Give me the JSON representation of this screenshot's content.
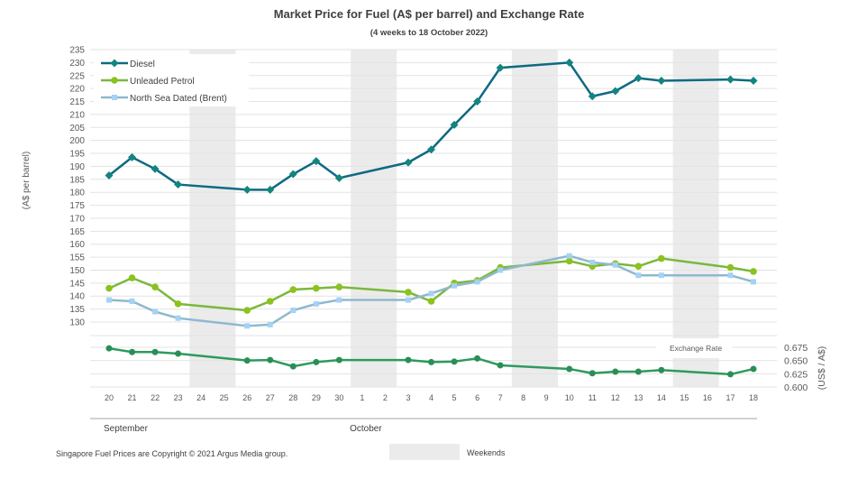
{
  "chart_data": {
    "type": "line",
    "title": "Market Price for Fuel (A$ per barrel) and Exchange Rate",
    "subtitle": "(4 weeks to 18 October 2022)",
    "ylabel": "(A$ per barrel)",
    "y2label": "(US$ / A$)",
    "ylim": [
      130,
      235
    ],
    "yticks": [
      130,
      135,
      140,
      145,
      150,
      155,
      160,
      165,
      170,
      175,
      180,
      185,
      190,
      195,
      200,
      205,
      210,
      215,
      220,
      225,
      230,
      235
    ],
    "y2lim": [
      0.6,
      0.675
    ],
    "y2ticks": [
      "0.600",
      "0.625",
      "0.650",
      "0.675"
    ],
    "x": [
      "20",
      "21",
      "22",
      "23",
      "24",
      "25",
      "26",
      "27",
      "28",
      "29",
      "30",
      "1",
      "2",
      "3",
      "4",
      "5",
      "6",
      "7",
      "8",
      "9",
      "10",
      "11",
      "12",
      "13",
      "14",
      "15",
      "16",
      "17",
      "18"
    ],
    "months": [
      {
        "label": "September",
        "from": "20",
        "to": "30"
      },
      {
        "label": "October",
        "from": "1",
        "to": "18"
      }
    ],
    "weekends": [
      [
        "24",
        "25"
      ],
      [
        "1",
        "2"
      ],
      [
        "8",
        "9"
      ],
      [
        "15",
        "16"
      ]
    ],
    "weekend_legend": "Weekends",
    "grid": true,
    "legend_placement": "top-left",
    "series": [
      {
        "name": "Diesel",
        "color": "#0e6a82",
        "marker": "diamond",
        "axis": "left",
        "values": {
          "20": 186.5,
          "21": 193.5,
          "22": 189,
          "23": 183,
          "26": 181,
          "27": 181,
          "28": 187,
          "29": 192,
          "30": 185.5,
          "3": 191.5,
          "4": 196.5,
          "5": 206,
          "6": 215,
          "7": 228,
          "10": 230,
          "11": 217,
          "12": 219,
          "13": 224,
          "14": 223,
          "17": 223.5,
          "18": 223
        }
      },
      {
        "name": "Unleaded Petrol",
        "color": "#7ab83c",
        "marker": "circle",
        "axis": "left",
        "values": {
          "20": 143,
          "21": 147,
          "22": 143.5,
          "23": 137,
          "26": 134.5,
          "27": 138,
          "28": 142.5,
          "29": 143,
          "30": 143.5,
          "3": 141.5,
          "4": 138,
          "5": 145,
          "6": 146,
          "7": 151,
          "10": 153.5,
          "11": 151.5,
          "12": 152.5,
          "13": 151.5,
          "14": 154.5,
          "17": 151,
          "18": 149.5
        }
      },
      {
        "name": "North Sea Dated (Brent)",
        "color": "#8fb8cf",
        "marker": "square",
        "axis": "left",
        "values": {
          "20": 138.5,
          "21": 138,
          "22": 134,
          "23": 131.5,
          "26": 128.5,
          "27": 129,
          "28": 134.5,
          "29": 137,
          "30": 138.5,
          "3": 138.5,
          "4": 141,
          "5": 144,
          "6": 145.5,
          "7": 150,
          "10": 155.5,
          "11": 153,
          "12": 152,
          "13": 148,
          "14": 148,
          "17": 148,
          "18": 145.5
        }
      },
      {
        "name": "Exchange Rate",
        "color": "#2e9a5e",
        "marker": "circle",
        "axis": "right",
        "values": {
          "20": 0.673,
          "21": 0.666,
          "22": 0.666,
          "23": 0.663,
          "26": 0.65,
          "27": 0.651,
          "28": 0.639,
          "29": 0.647,
          "30": 0.651,
          "3": 0.651,
          "4": 0.647,
          "5": 0.648,
          "6": 0.654,
          "7": 0.641,
          "10": 0.634,
          "11": 0.626,
          "12": 0.629,
          "13": 0.629,
          "14": 0.632,
          "17": 0.624,
          "18": 0.634
        }
      }
    ],
    "footnote": "Singapore Fuel Prices are Copyright © 2021 Argus Media group."
  }
}
